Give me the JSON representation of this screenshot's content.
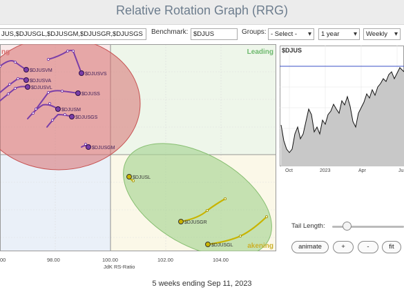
{
  "header": {
    "title": "Relative Rotation Graph (RRG)"
  },
  "controls": {
    "symbols_value": "JUS,$DJUSGL,$DJUSGM,$DJUSGR,$DJUSGS",
    "benchmark_label": "Benchmark:",
    "benchmark_value": "$DJUS",
    "groups_label": "Groups:",
    "groups_value": "- Select -",
    "period_value": "1 year",
    "frequency_value": "Weekly"
  },
  "colors": {
    "leading_quadrant": "#eef6ea",
    "lagging_quadrant": "#f9eaea",
    "improving_quadrant": "#eaf0f8",
    "weakening_quadrant": "#fbf8e8",
    "red_highlight": "#d77070",
    "green_highlight": "#a8d494",
    "purple_series": "#7a3ea8",
    "yellow_series": "#c8b400"
  },
  "chart": {
    "quadrant_leading": "Leading",
    "quadrant_lagging": "ng",
    "quadrant_weakening": "akening",
    "x_axis_title": "JdK RS-Ratio",
    "x_ticks": [
      "00",
      "98.00",
      "100.00",
      "102.00",
      "104.00"
    ]
  },
  "chart_data": {
    "type": "scatter",
    "xlabel": "JdK RS-Ratio",
    "x_ticks": [
      "00",
      "98.00",
      "100.00",
      "102.00",
      "104.00"
    ],
    "series": [
      {
        "name": "$DJUSVM",
        "color": "purple"
      },
      {
        "name": "$DJUSVS",
        "color": "purple"
      },
      {
        "name": "$DJUSVA",
        "color": "purple"
      },
      {
        "name": "$DJUSVL",
        "color": "purple"
      },
      {
        "name": "$DJUSS",
        "color": "purple"
      },
      {
        "name": "$DJUSM",
        "color": "purple"
      },
      {
        "name": "$DJUSGS",
        "color": "purple"
      },
      {
        "name": "$DJUSGM",
        "color": "purple"
      },
      {
        "name": "$DJUSL",
        "color": "yellow"
      },
      {
        "name": "$DJUSGR",
        "color": "yellow"
      },
      {
        "name": "$DJUSGL",
        "color": "yellow"
      }
    ]
  },
  "sparkline": {
    "symbol": "$DJUS",
    "x_ticks": [
      "Oct",
      "2023",
      "Apr",
      "Ju"
    ]
  },
  "tail": {
    "label": "Tail Length:",
    "value": 0.14
  },
  "buttons": {
    "animate": "animate",
    "plus": "+",
    "minus": "-",
    "fit": "fit"
  },
  "footer": {
    "caption": "5 weeks ending Sep 11, 2023"
  }
}
